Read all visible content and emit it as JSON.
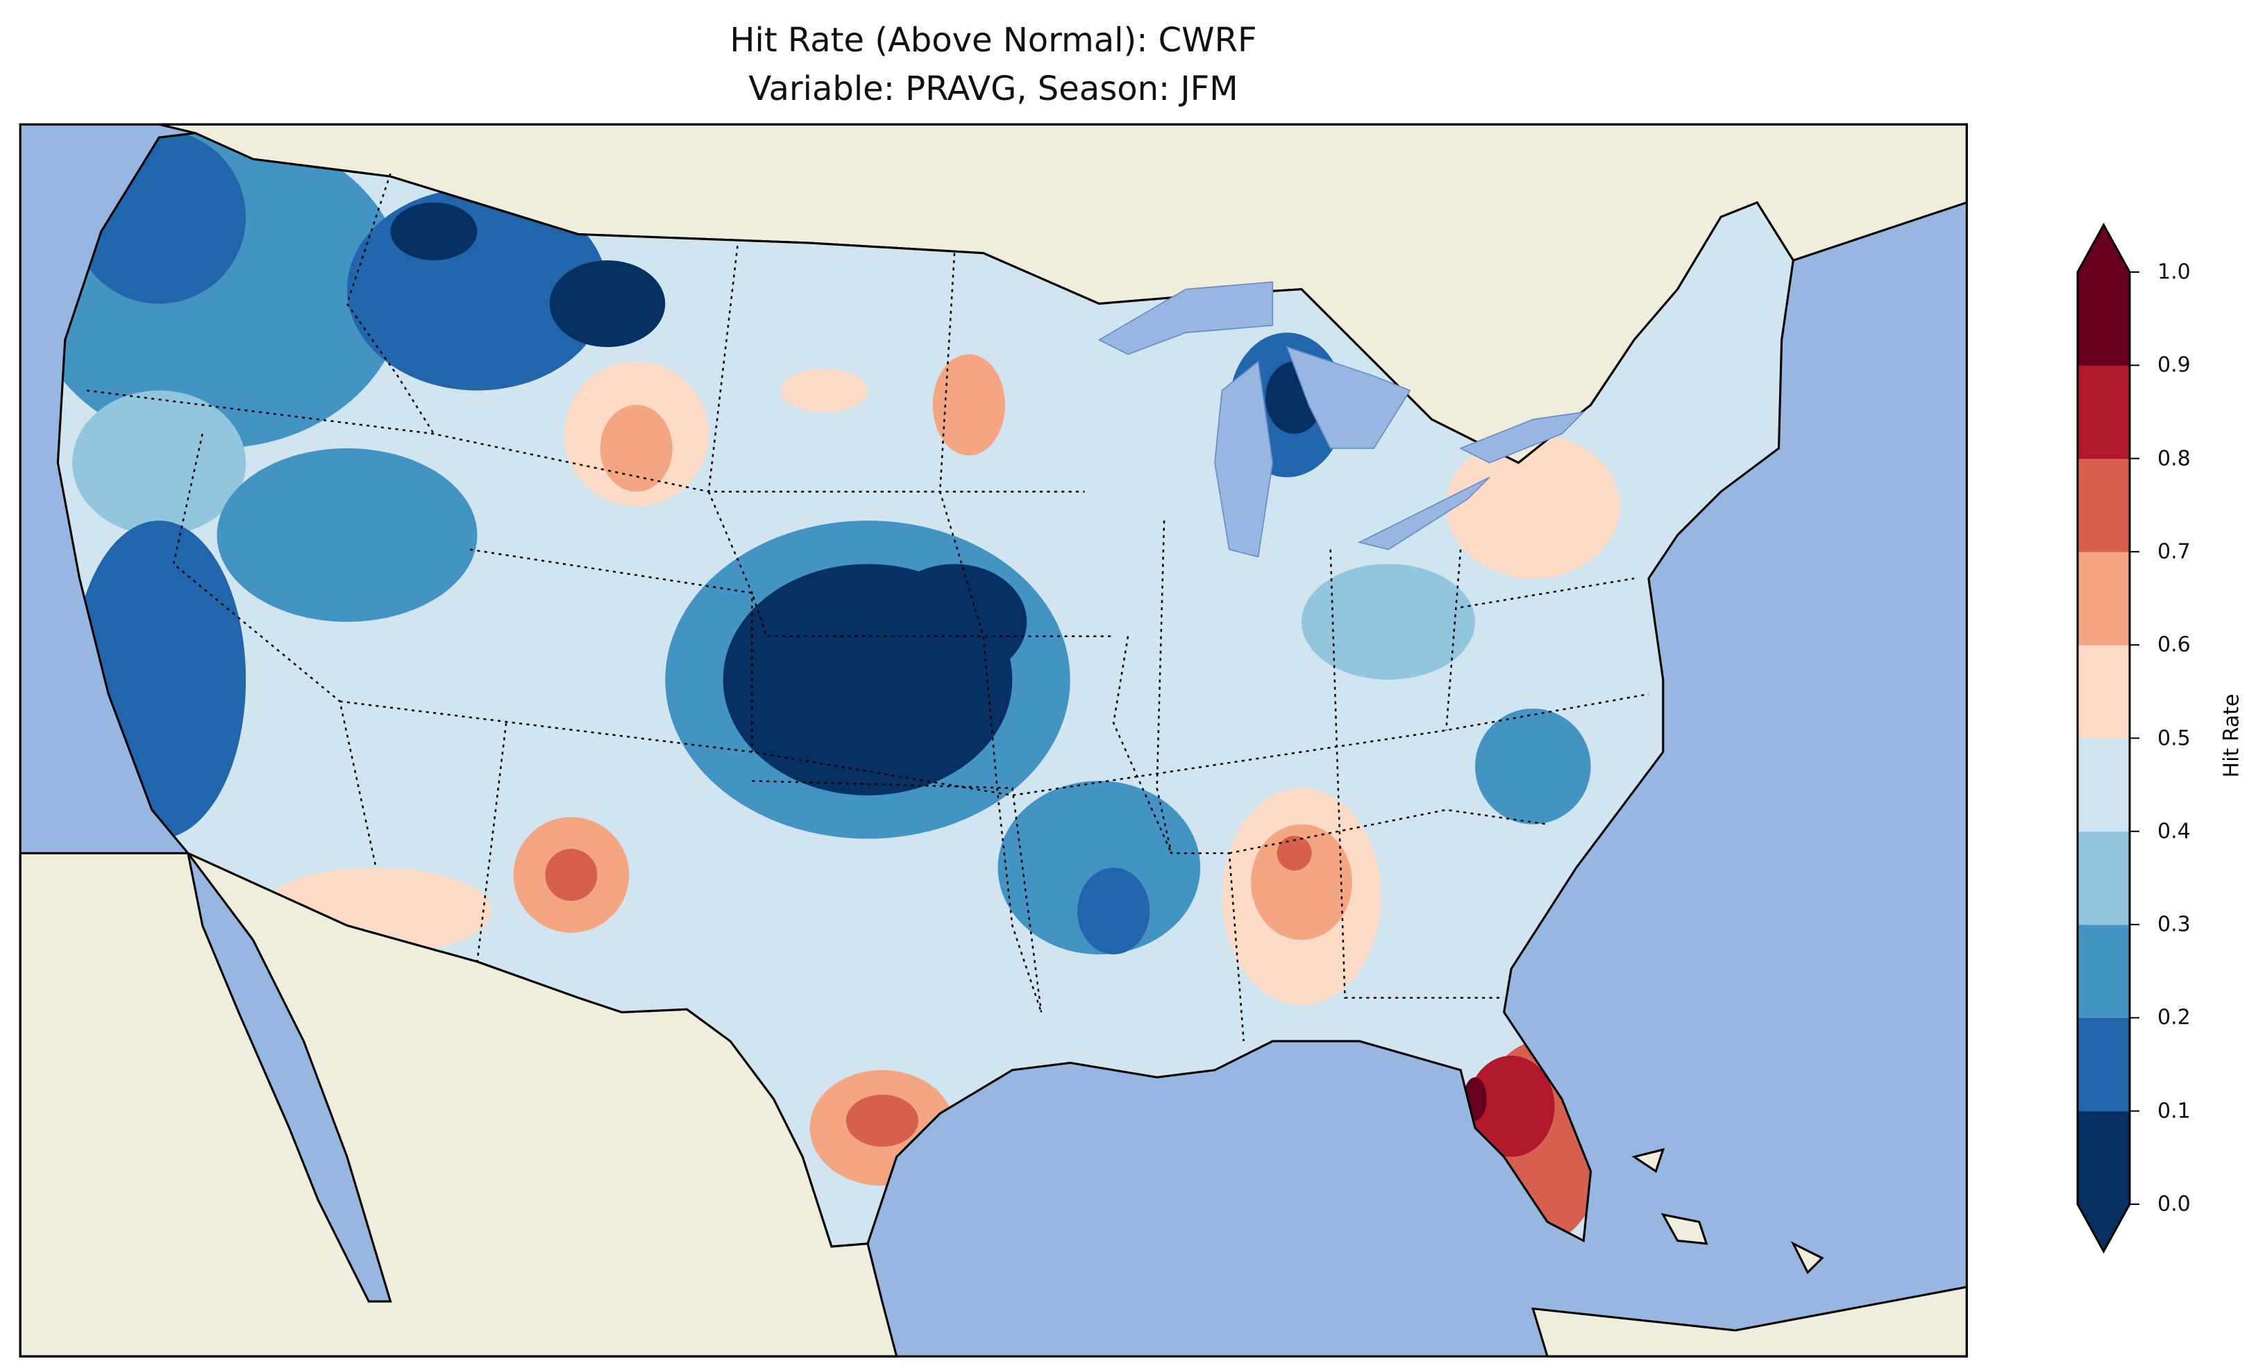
{
  "title": {
    "line1": "Hit Rate (Above Normal): CWRF",
    "line2": "Variable: PRAVG, Season: JFM"
  },
  "colors": {
    "ocean": "#97b6e1",
    "land": "#efeddb",
    "bins": [
      "#053061",
      "#2166ac",
      "#4393c3",
      "#92c5de",
      "#d1e5f0",
      "#fddbc7",
      "#f4a582",
      "#d6604d",
      "#b2182b",
      "#67001f"
    ]
  },
  "colorbar": {
    "label": "Hit Rate",
    "ticks": [
      "0.0",
      "0.1",
      "0.2",
      "0.3",
      "0.4",
      "0.5",
      "0.6",
      "0.7",
      "0.8",
      "0.9",
      "1.0"
    ],
    "range": [
      0.0,
      1.0
    ],
    "extend": "both"
  }
}
